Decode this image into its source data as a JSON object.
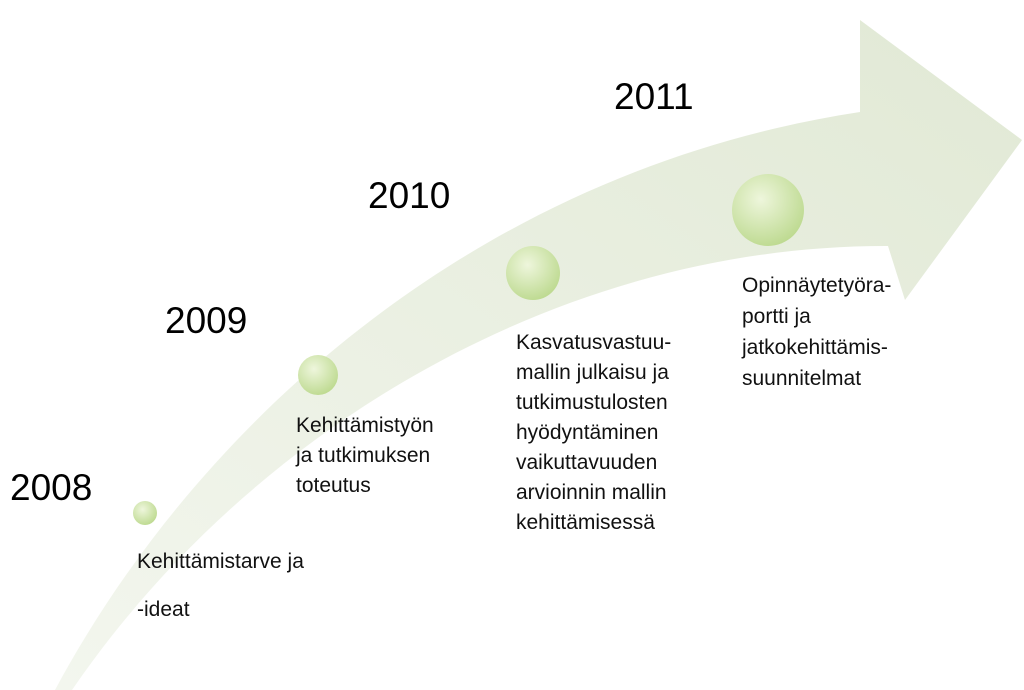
{
  "milestones": [
    {
      "year": "2008",
      "lines": [
        "Kehittämistarve ja",
        "-ideat"
      ]
    },
    {
      "year": "2009",
      "lines": [
        "Kehittämistyön",
        "ja tutkimuksen",
        "toteutus"
      ]
    },
    {
      "year": "2010",
      "lines": [
        "Kasvatusvastuu-",
        "mallin julkaisu ja",
        "tutkimustulosten",
        "hyödyntäminen",
        "vaikuttavuuden",
        "arvioinnin mallin",
        "kehittämisessä"
      ]
    },
    {
      "year": "2011",
      "lines": [
        "Opinnäytetyöra-",
        "portti ja",
        "jatkokehittämis-",
        "suunnitelmat"
      ]
    }
  ]
}
